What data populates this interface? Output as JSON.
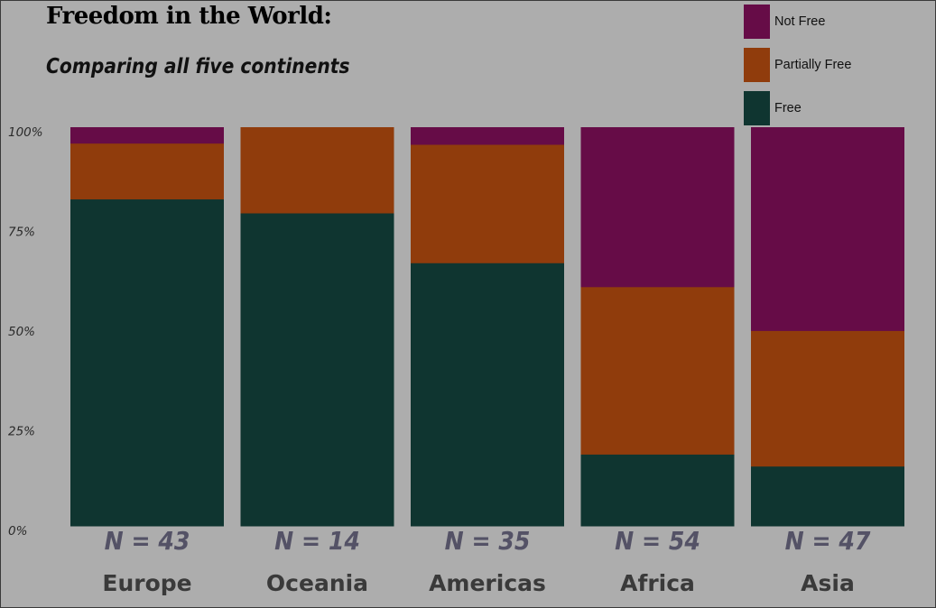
{
  "chart_data": {
    "type": "bar",
    "stacked": true,
    "normalized": true,
    "title": "Freedom in the World:",
    "subtitle": "Comparing all five continents",
    "xlabel": "",
    "ylabel": "",
    "ylim": [
      0,
      100
    ],
    "yticks": [
      "0%",
      "25%",
      "50%",
      "75%",
      "100%"
    ],
    "categories": [
      "Europe",
      "Oceania",
      "Americas",
      "Africa",
      "Asia"
    ],
    "n_labels": [
      "N = 43",
      "N = 14",
      "N = 35",
      "N = 54",
      "N = 47"
    ],
    "series": [
      {
        "name": "Free",
        "color": "#0f3530",
        "values": [
          82,
          78.5,
          66,
          18,
          15
        ]
      },
      {
        "name": "Partially Free",
        "color": "#903c0c",
        "values": [
          14,
          21.5,
          29.7,
          42,
          34
        ]
      },
      {
        "name": "Not Free",
        "color": "#660c47",
        "values": [
          4,
          0,
          4.3,
          40,
          51
        ]
      }
    ],
    "legend_order": [
      "Not Free",
      "Partially Free",
      "Free"
    ],
    "legend_position": "top-right",
    "grid": false
  }
}
